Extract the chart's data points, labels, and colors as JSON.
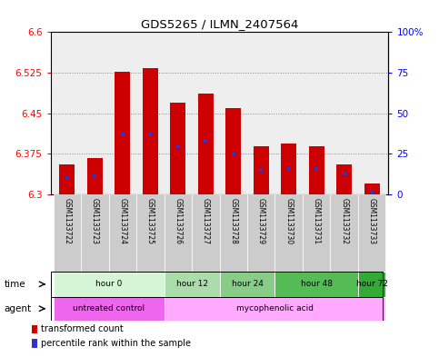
{
  "title": "GDS5265 / ILMN_2407564",
  "samples": [
    "GSM1133722",
    "GSM1133723",
    "GSM1133724",
    "GSM1133725",
    "GSM1133726",
    "GSM1133727",
    "GSM1133728",
    "GSM1133729",
    "GSM1133730",
    "GSM1133731",
    "GSM1133732",
    "GSM1133733"
  ],
  "bar_values": [
    6.355,
    6.368,
    6.527,
    6.533,
    6.47,
    6.487,
    6.46,
    6.39,
    6.395,
    6.39,
    6.355,
    6.32
  ],
  "bar_base": 6.3,
  "percentile_values": [
    10,
    12,
    37,
    37,
    30,
    33,
    25,
    15,
    16,
    16,
    13,
    2
  ],
  "ylim_left": [
    6.3,
    6.6
  ],
  "ylim_right": [
    0,
    100
  ],
  "yticks_left": [
    6.3,
    6.375,
    6.45,
    6.525,
    6.6
  ],
  "yticks_right": [
    0,
    25,
    50,
    75,
    100
  ],
  "bar_color": "#cc0000",
  "blue_color": "#3333cc",
  "time_groups": [
    {
      "label": "hour 0",
      "start": 0,
      "end": 3,
      "color": "#d6f5d6"
    },
    {
      "label": "hour 12",
      "start": 4,
      "end": 5,
      "color": "#aaddaa"
    },
    {
      "label": "hour 24",
      "start": 6,
      "end": 7,
      "color": "#88cc88"
    },
    {
      "label": "hour 48",
      "start": 8,
      "end": 10,
      "color": "#55bb55"
    },
    {
      "label": "hour 72",
      "start": 11,
      "end": 11,
      "color": "#33aa33"
    }
  ],
  "agent_groups": [
    {
      "label": "untreated control",
      "start": 0,
      "end": 3,
      "color": "#ee66ee"
    },
    {
      "label": "mycophenolic acid",
      "start": 4,
      "end": 11,
      "color": "#ffaaff"
    }
  ],
  "grid_color": "#888888",
  "background_color": "#ffffff",
  "plot_bg": "#eeeeee",
  "sample_cell_color": "#cccccc",
  "legend_red_color": "#cc0000",
  "legend_blue_color": "#3333cc"
}
